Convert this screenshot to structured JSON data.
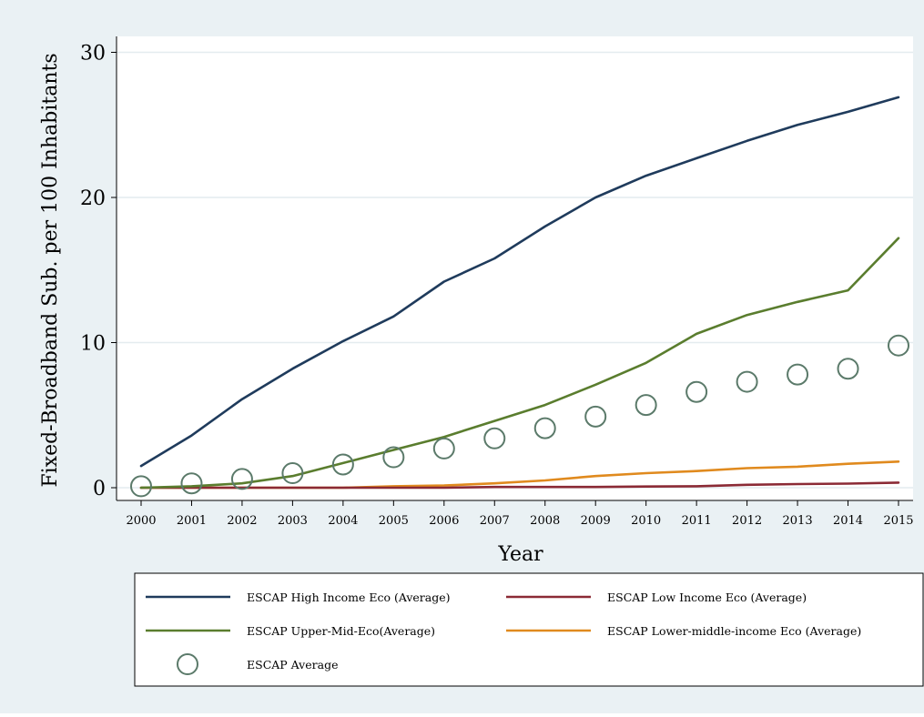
{
  "chart_data": {
    "type": "line",
    "title": "",
    "xlabel": "Year",
    "ylabel": "Fixed-Broadband Sub. per 100 Inhabitants",
    "x": [
      2000,
      2001,
      2002,
      2003,
      2004,
      2005,
      2006,
      2007,
      2008,
      2009,
      2010,
      2011,
      2012,
      2013,
      2014,
      2015
    ],
    "xlim": [
      2000,
      2015
    ],
    "ylim": [
      -1.5,
      31
    ],
    "yticks": [
      0,
      10,
      20,
      30
    ],
    "grid": true,
    "legend_position": "bottom",
    "series": [
      {
        "name": "ESCAP High Income Eco (Average)",
        "style": "line",
        "color": "#1f3b5c",
        "values": [
          1.5,
          3.6,
          6.1,
          8.2,
          10.1,
          11.8,
          14.2,
          15.8,
          18.0,
          20.0,
          21.5,
          22.7,
          23.9,
          25.0,
          25.9,
          26.9
        ]
      },
      {
        "name": "ESCAP Low Income Eco (Average)",
        "style": "line",
        "color": "#8b2a35",
        "values": [
          0.0,
          0.0,
          0.0,
          0.0,
          0.0,
          0.0,
          0.0,
          0.05,
          0.05,
          0.05,
          0.08,
          0.1,
          0.2,
          0.25,
          0.28,
          0.35
        ]
      },
      {
        "name": "ESCAP Upper-Mid-Eco(Average)",
        "style": "line",
        "color": "#5a7d2e",
        "values": [
          0.0,
          0.1,
          0.3,
          0.8,
          1.7,
          2.6,
          3.5,
          4.6,
          5.7,
          7.1,
          8.6,
          10.6,
          11.9,
          12.8,
          13.6,
          17.2
        ]
      },
      {
        "name": "ESCAP Lower-middle-income Eco (Average)",
        "style": "line",
        "color": "#e08a1e",
        "values": [
          0.0,
          0.0,
          0.0,
          0.0,
          0.0,
          0.1,
          0.15,
          0.3,
          0.5,
          0.8,
          1.0,
          1.15,
          1.35,
          1.45,
          1.65,
          1.8
        ]
      },
      {
        "name": "ESCAP Average",
        "style": "markers",
        "color": "#5b7a6a",
        "values": [
          0.1,
          0.3,
          0.6,
          1.0,
          1.6,
          2.1,
          2.7,
          3.4,
          4.1,
          4.9,
          5.7,
          6.6,
          7.3,
          7.8,
          8.2,
          9.8
        ]
      }
    ]
  },
  "colors": {
    "outer_background": "#eaf1f4",
    "plot_background": "#ffffff",
    "gridline": "#e4ecef"
  }
}
